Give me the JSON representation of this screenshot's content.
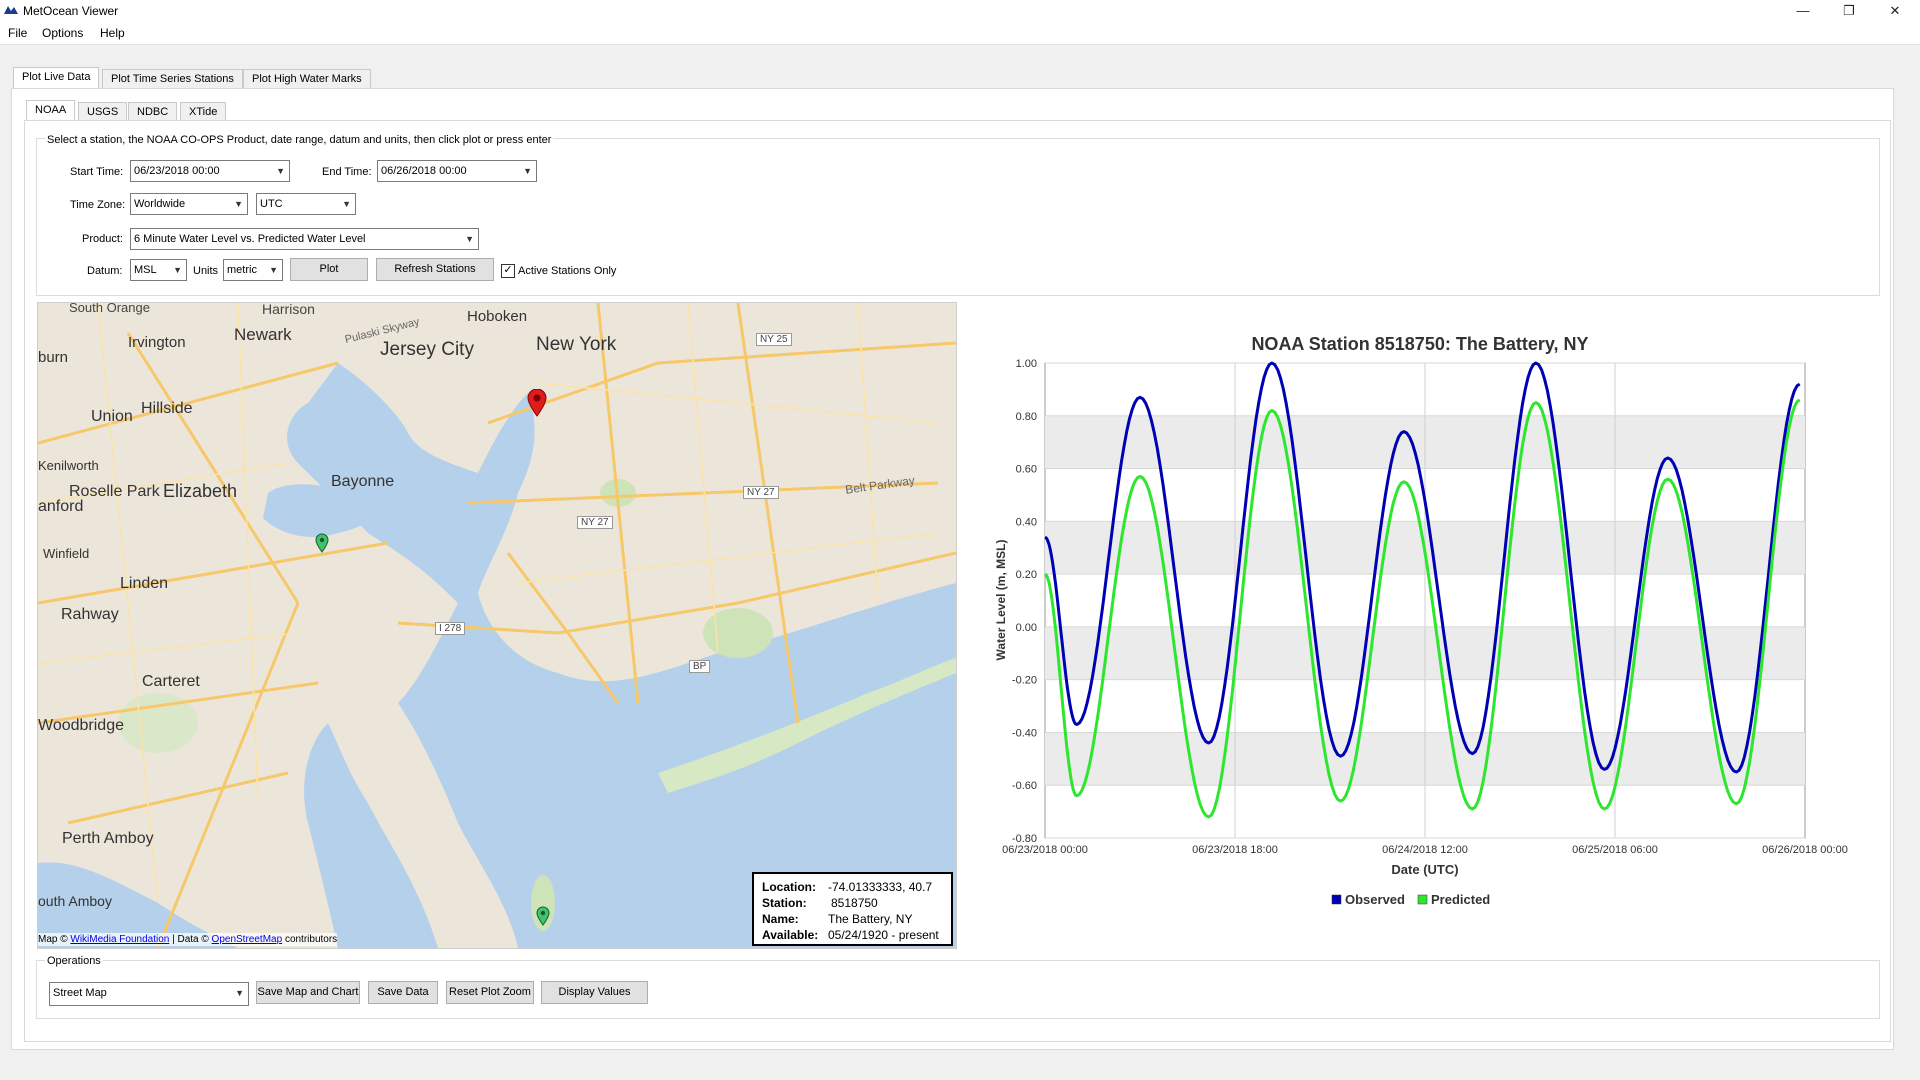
{
  "window": {
    "title": "MetOcean Viewer",
    "minimize": "—",
    "maximize": "❐",
    "close": "✕"
  },
  "menu": {
    "file": "File",
    "options": "Options",
    "help": "Help"
  },
  "main_tabs": [
    "Plot Live Data",
    "Plot Time Series Stations",
    "Plot High Water Marks"
  ],
  "sub_tabs": [
    "NOAA",
    "USGS",
    "NDBC",
    "XTide"
  ],
  "form": {
    "instructions": "Select a station, the NOAA CO-OPS Product, date range, datum and units, then click plot or press enter",
    "start_time_label": "Start Time:",
    "start_time": "06/23/2018 00:00",
    "end_time_label": "End Time:",
    "end_time": "06/26/2018 00:00",
    "time_zone_label": "Time Zone:",
    "time_zone_region": "Worldwide",
    "time_zone": "UTC",
    "product_label": "Product:",
    "product": "6 Minute Water Level vs. Predicted Water Level",
    "datum_label": "Datum:",
    "datum": "MSL",
    "units_label": "Units",
    "units": "metric",
    "plot_button": "Plot",
    "refresh_button": "Refresh Stations",
    "active_only_label": "Active Stations Only",
    "active_only_checked": true
  },
  "map": {
    "place_labels": [
      "South Orange",
      "Harrison",
      "Hoboken",
      "Irvington",
      "Newark",
      "Pulaski Skyway",
      "Jersey City",
      "New York",
      "NY 25",
      "burn",
      "Hillside",
      "Union",
      "Kenilworth",
      "Roselle Park",
      "Elizabeth",
      "anford",
      "Bayonne",
      "NY 27",
      "Belt Parkway",
      "NY 27",
      "Winfield",
      "Linden",
      "Rahway",
      "I 278",
      "BP",
      "Carteret",
      "Woodbridge",
      "Perth Amboy",
      "outh Amboy"
    ],
    "attribution_prefix": "Map ©",
    "attribution_link1": "WikiMedia Foundation",
    "attribution_mid": "| Data ©",
    "attribution_link2": "OpenStreetMap",
    "attribution_suffix": "contributors",
    "info": {
      "location_label": "Location:",
      "location": "-74.01333333, 40.7",
      "station_label": "Station:",
      "station": "8518750",
      "name_label": "Name:",
      "name": "The Battery, NY",
      "available_label": "Available:",
      "available": "05/24/1920 - present"
    }
  },
  "chart_data": {
    "type": "line",
    "title": "NOAA Station 8518750: The Battery, NY",
    "xlabel": "Date (UTC)",
    "ylabel": "Water Level (m, MSL)",
    "xlim": [
      "06/23/2018 00:00",
      "06/26/2018 00:00"
    ],
    "ylim": [
      -0.8,
      1.0
    ],
    "x_ticks": [
      "06/23/2018 00:00",
      "06/23/2018 18:00",
      "06/24/2018 12:00",
      "06/25/2018 06:00",
      "06/26/2018 00:00"
    ],
    "y_ticks": [
      "1.00",
      "0.80",
      "0.60",
      "0.40",
      "0.20",
      "0.00",
      "-0.20",
      "-0.40",
      "-0.60",
      "-0.80"
    ],
    "legend_position": "bottom",
    "grid": true,
    "series": [
      {
        "name": "Observed",
        "color": "#0000b4",
        "points": [
          [
            "06/23/2018 00:00",
            0.34
          ],
          [
            "06/23/2018 03:00",
            -0.37
          ],
          [
            "06/23/2018 09:00",
            0.87
          ],
          [
            "06/23/2018 15:30",
            -0.44
          ],
          [
            "06/23/2018 21:30",
            1.0
          ],
          [
            "06/24/2018 04:00",
            -0.49
          ],
          [
            "06/24/2018 10:00",
            0.74
          ],
          [
            "06/24/2018 16:30",
            -0.48
          ],
          [
            "06/24/2018 22:30",
            1.0
          ],
          [
            "06/25/2018 05:00",
            -0.54
          ],
          [
            "06/25/2018 11:00",
            0.64
          ],
          [
            "06/25/2018 17:30",
            -0.55
          ],
          [
            "06/25/2018 23:30",
            0.92
          ]
        ]
      },
      {
        "name": "Predicted",
        "color": "#2ee62e",
        "points": [
          [
            "06/23/2018 00:00",
            0.2
          ],
          [
            "06/23/2018 03:00",
            -0.64
          ],
          [
            "06/23/2018 09:00",
            0.57
          ],
          [
            "06/23/2018 15:30",
            -0.72
          ],
          [
            "06/23/2018 21:30",
            0.82
          ],
          [
            "06/24/2018 04:00",
            -0.66
          ],
          [
            "06/24/2018 10:00",
            0.55
          ],
          [
            "06/24/2018 16:30",
            -0.69
          ],
          [
            "06/24/2018 22:30",
            0.85
          ],
          [
            "06/25/2018 05:00",
            -0.69
          ],
          [
            "06/25/2018 11:00",
            0.56
          ],
          [
            "06/25/2018 17:30",
            -0.67
          ],
          [
            "06/25/2018 23:30",
            0.86
          ]
        ]
      }
    ]
  },
  "operations": {
    "group_label": "Operations",
    "map_type": "Street Map",
    "save_map_chart": "Save Map and Chart",
    "save_data": "Save Data",
    "reset_zoom": "Reset Plot Zoom",
    "display_values": "Display Values"
  },
  "colors": {
    "accent_blue": "#0000b4",
    "accent_green": "#2ee62e",
    "water": "#b5d0ea",
    "land": "#ece6da",
    "road": "#f6c86a"
  }
}
